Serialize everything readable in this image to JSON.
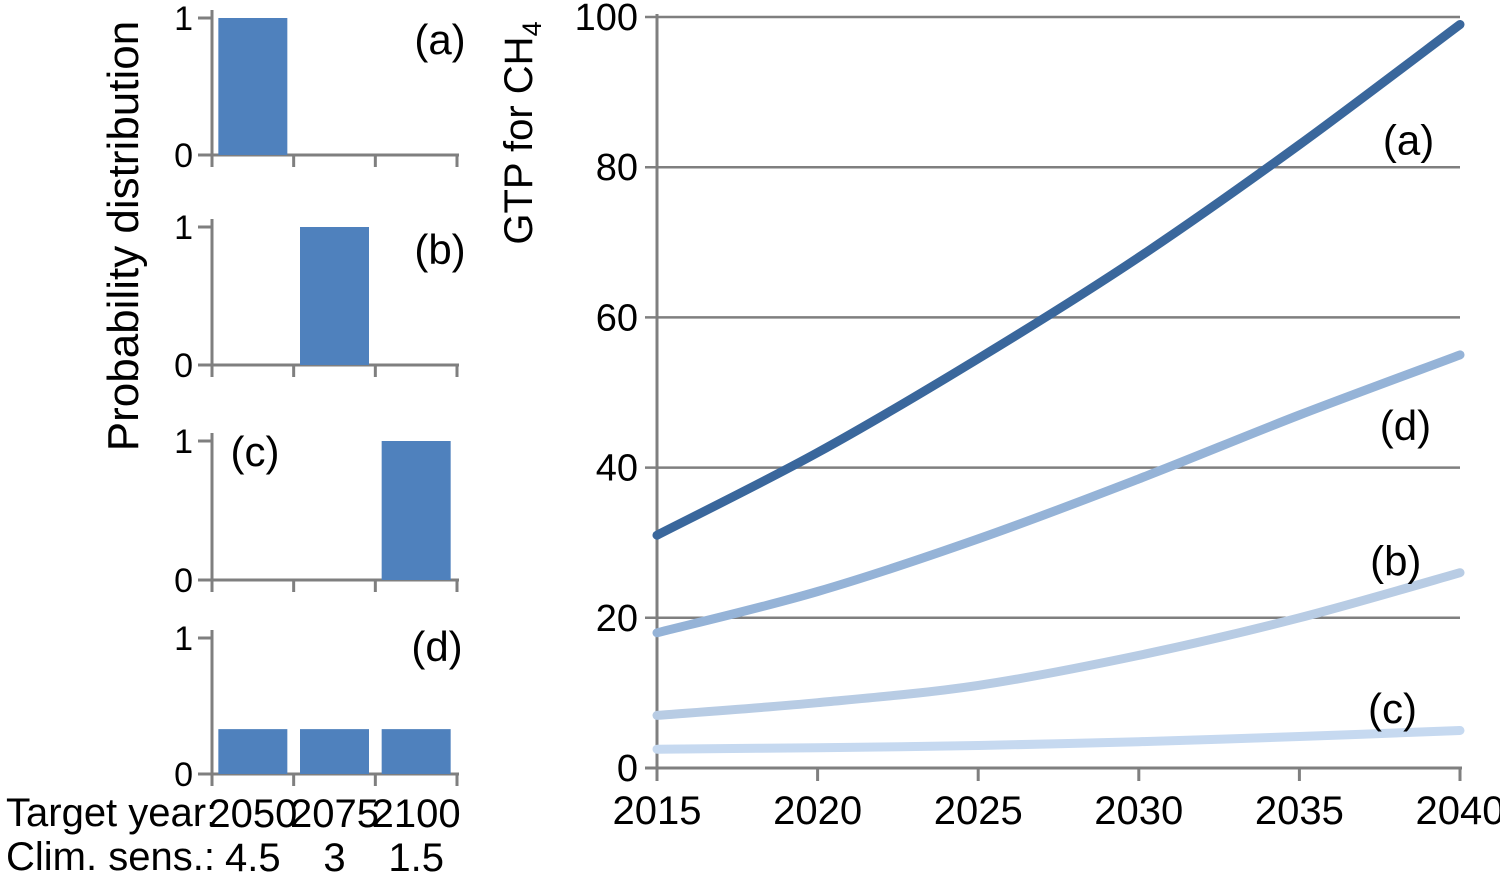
{
  "colors": {
    "background": "#ffffff",
    "axis": "#7f7f7f",
    "grid": "#7f7f7f",
    "bar": "#4f81bd",
    "text": "#000000"
  },
  "labels": {
    "left_ylabel": "Probability distribution",
    "main_ylabel_main": "GTP for CH",
    "main_ylabel_sub": "4"
  },
  "chart_data": [
    {
      "id": "gtp-for-ch4",
      "type": "line",
      "title": "",
      "xlabel": "",
      "ylabel": "GTP for CH4",
      "x": [
        2015,
        2020,
        2025,
        2030,
        2035,
        2040
      ],
      "series": [
        {
          "name": "(a)",
          "color": "#3a679c",
          "values": [
            31,
            42,
            54.5,
            68,
            83,
            99
          ]
        },
        {
          "name": "(d)",
          "color": "#95b3d7",
          "values": [
            18,
            23.5,
            30.5,
            38.5,
            47,
            55
          ]
        },
        {
          "name": "(b)",
          "color": "#b8cce4",
          "values": [
            7,
            8.7,
            11,
            15,
            20,
            26
          ]
        },
        {
          "name": "(c)",
          "color": "#c6d9f0",
          "values": [
            2.5,
            2.7,
            3,
            3.5,
            4.2,
            5
          ]
        }
      ],
      "xlim": [
        2015,
        2040
      ],
      "ylim": [
        0,
        100
      ],
      "yticks": [
        100,
        80,
        60,
        40,
        20,
        0
      ],
      "xticks": [
        2015,
        2020,
        2025,
        2030,
        2035,
        2040
      ],
      "grid": "horizontal",
      "legend": "none",
      "annotations": [
        {
          "text": "(a)",
          "x": 2038.4,
          "y": 83.7
        },
        {
          "text": "(d)",
          "x": 2038.3,
          "y": 45.7
        },
        {
          "text": "(b)",
          "x": 2038.0,
          "y": 27.6
        },
        {
          "text": "(c)",
          "x": 2037.9,
          "y": 8.0
        }
      ]
    },
    {
      "id": "probability-distributions",
      "type": "bar",
      "ylabel": "Probability distribution",
      "categories": [
        "2050",
        "2075",
        "2100"
      ],
      "category_row_caption": "Target year:",
      "secondary_row": {
        "caption": "Clim. sens.:",
        "values": [
          "4.5",
          "3",
          "1.5"
        ]
      },
      "ylim": [
        0,
        1
      ],
      "yticks": [
        1,
        0
      ],
      "bar_color": "#4f81bd",
      "panels": [
        {
          "label": "(a)",
          "values": [
            1,
            0,
            0
          ]
        },
        {
          "label": "(b)",
          "values": [
            0,
            1,
            0
          ]
        },
        {
          "label": "(c)",
          "values": [
            0,
            0,
            1
          ]
        },
        {
          "label": "(d)",
          "values": [
            0.33,
            0.33,
            0.33
          ]
        }
      ]
    }
  ]
}
